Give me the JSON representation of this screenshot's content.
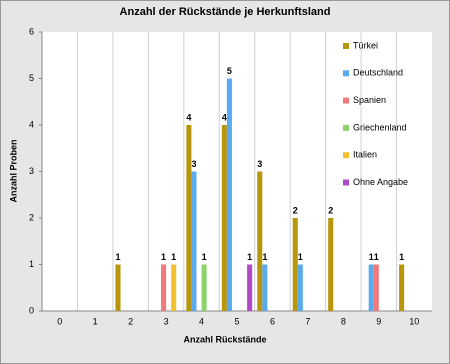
{
  "chart_data": {
    "type": "bar",
    "title": "Anzahl der Rückstände je Herkunftsland",
    "x_label": "Anzahl Rückstände",
    "y_label": "Anzahl Proben",
    "categories": [
      "0",
      "1",
      "2",
      "3",
      "4",
      "5",
      "6",
      "7",
      "8",
      "9",
      "10"
    ],
    "series": [
      {
        "name": "Türkei",
        "color": "#b8960c",
        "values": [
          null,
          null,
          1,
          null,
          4,
          4,
          3,
          2,
          2,
          null,
          1
        ]
      },
      {
        "name": "Deutschland",
        "color": "#5aaaf0",
        "values": [
          null,
          null,
          null,
          null,
          3,
          5,
          1,
          1,
          null,
          1,
          null
        ]
      },
      {
        "name": "Spanien",
        "color": "#f07a7a",
        "values": [
          null,
          null,
          null,
          1,
          null,
          null,
          null,
          null,
          null,
          1,
          null
        ]
      },
      {
        "name": "Griechenland",
        "color": "#8cd46a",
        "values": [
          null,
          null,
          null,
          null,
          1,
          null,
          null,
          null,
          null,
          null,
          null
        ]
      },
      {
        "name": "Italien",
        "color": "#f5c030",
        "values": [
          null,
          null,
          null,
          1,
          null,
          null,
          null,
          null,
          null,
          null,
          null
        ]
      },
      {
        "name": "Ohne Angabe",
        "color": "#b048c8",
        "values": [
          null,
          null,
          null,
          null,
          null,
          1,
          null,
          null,
          null,
          null,
          null
        ]
      }
    ],
    "ylim": [
      0,
      6
    ],
    "yticks": [
      0,
      1,
      2,
      3,
      4,
      5,
      6
    ],
    "legend": "right"
  }
}
